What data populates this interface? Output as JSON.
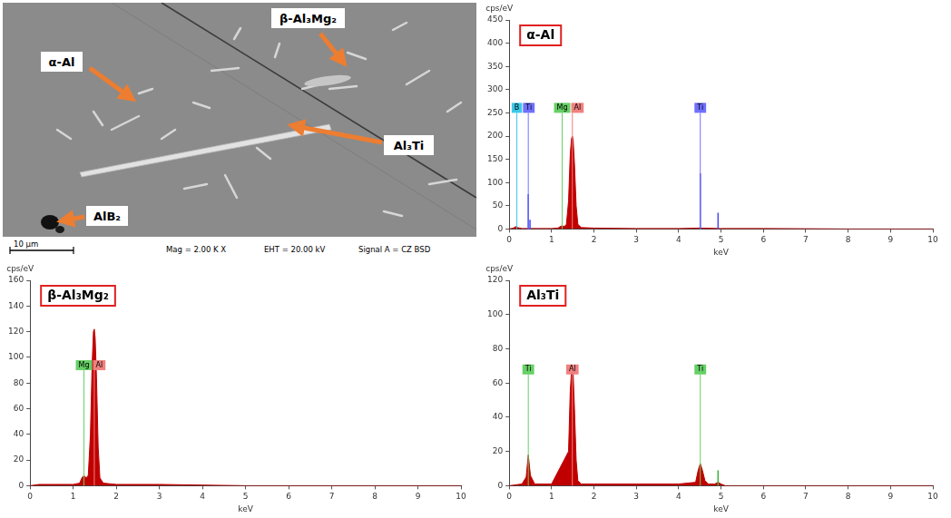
{
  "micrograph": {
    "labels": [
      "α-Al",
      "β-Al₃Mg₂",
      "Al₃Ti",
      "AlB₂"
    ],
    "scale_bar": "10 µm",
    "info": [
      "Mag =  2.00 K X",
      "EHT = 20.00 kV",
      "Signal A = CZ BSD"
    ]
  },
  "chart_data": [
    {
      "type": "line",
      "title": "α-Al",
      "xlabel": "keV",
      "ylabel": "cps/eV",
      "x": [
        0,
        0.1,
        0.15,
        0.2,
        0.25,
        0.3,
        0.5,
        1.0,
        1.15,
        1.2,
        1.25,
        1.3,
        1.35,
        1.4,
        1.44,
        1.47,
        1.49,
        1.51,
        1.54,
        1.58,
        1.62,
        1.7,
        2.0,
        3.0,
        4.0,
        4.5,
        5.0,
        6.0,
        8.0,
        10.0
      ],
      "values": [
        0,
        2,
        5,
        3,
        2,
        1,
        1,
        1,
        2,
        5,
        7,
        5,
        10,
        60,
        160,
        195,
        200,
        190,
        140,
        50,
        10,
        3,
        2,
        1,
        1,
        2,
        1,
        1,
        0,
        0
      ],
      "color": "#c00000",
      "xlim": [
        0,
        10
      ],
      "xticks": [
        0,
        1,
        2,
        3,
        4,
        5,
        6,
        7,
        8,
        9,
        10
      ],
      "ylim": [
        0,
        450
      ],
      "yticks": [
        0,
        50,
        100,
        150,
        200,
        250,
        300,
        350,
        400,
        450
      ],
      "grid": false,
      "element_markers": [
        {
          "label": "B",
          "x": 0.18,
          "y": 250,
          "color": "#3cc8e6"
        },
        {
          "label": "Ti",
          "x": 0.45,
          "y": 250,
          "color": "#7070ff"
        },
        {
          "label": "Mg",
          "x": 1.25,
          "y": 250,
          "color": "#66d066"
        },
        {
          "label": "Al",
          "x": 1.49,
          "y": 250,
          "color": "#f08080"
        },
        {
          "label": "Ti",
          "x": 4.51,
          "y": 250,
          "color": "#7070ff"
        }
      ],
      "marker_lines": [
        {
          "x": 0.45,
          "y": 75,
          "color": "#5050f0"
        },
        {
          "x": 0.49,
          "y": 20,
          "color": "#5050f0"
        },
        {
          "x": 4.51,
          "y": 120,
          "color": "#5050f0"
        },
        {
          "x": 4.93,
          "y": 35,
          "color": "#5050f0"
        }
      ]
    },
    {
      "type": "line",
      "title": "β-Al₃Mg₂",
      "xlabel": "keV",
      "ylabel": "cps/eV",
      "x": [
        0,
        0.2,
        0.5,
        1.0,
        1.15,
        1.2,
        1.25,
        1.3,
        1.35,
        1.4,
        1.44,
        1.47,
        1.49,
        1.51,
        1.54,
        1.58,
        1.62,
        1.7,
        2,
        3,
        5,
        10
      ],
      "values": [
        0,
        1,
        1,
        1,
        2,
        6,
        8,
        6,
        8,
        40,
        95,
        120,
        122,
        115,
        85,
        30,
        6,
        2,
        1,
        1,
        0,
        0
      ],
      "color": "#c00000",
      "xlim": [
        0,
        10
      ],
      "xticks": [
        0,
        1,
        2,
        3,
        4,
        5,
        6,
        7,
        8,
        9,
        10
      ],
      "ylim": [
        0,
        160
      ],
      "yticks": [
        0,
        20,
        40,
        60,
        80,
        100,
        120,
        140,
        160
      ],
      "grid": false,
      "element_markers": [
        {
          "label": "Mg",
          "x": 1.25,
          "y": 90,
          "color": "#66d066"
        },
        {
          "label": "Al",
          "x": 1.49,
          "y": 90,
          "color": "#f08080"
        }
      ],
      "marker_lines": []
    },
    {
      "type": "line",
      "title": "Al₃Ti",
      "xlabel": "keV",
      "ylabel": "cps/eV",
      "x": [
        0,
        0.3,
        0.4,
        0.45,
        0.5,
        0.6,
        1.0,
        1.4,
        1.44,
        1.47,
        1.49,
        1.51,
        1.54,
        1.58,
        1.62,
        1.7,
        2,
        3,
        4,
        4.4,
        4.46,
        4.51,
        4.56,
        4.62,
        4.7,
        4.85,
        4.93,
        5.0,
        5.1,
        6,
        10
      ],
      "values": [
        0,
        1,
        5,
        18,
        6,
        1,
        1,
        20,
        55,
        67,
        68,
        65,
        45,
        15,
        3,
        1,
        1,
        1,
        1,
        2,
        9,
        13,
        9,
        3,
        1,
        1,
        2,
        1,
        0,
        0,
        0
      ],
      "color": "#c00000",
      "xlim": [
        0,
        10
      ],
      "xticks": [
        0,
        1,
        2,
        3,
        4,
        5,
        6,
        7,
        8,
        9,
        10
      ],
      "ylim": [
        0,
        120
      ],
      "yticks": [
        0,
        20,
        40,
        60,
        80,
        100,
        120
      ],
      "grid": false,
      "element_markers": [
        {
          "label": "Ti",
          "x": 0.45,
          "y": 65,
          "color": "#66d066"
        },
        {
          "label": "Al",
          "x": 1.49,
          "y": 65,
          "color": "#f08080"
        },
        {
          "label": "Ti",
          "x": 4.51,
          "y": 65,
          "color": "#66d066"
        }
      ],
      "marker_lines": [
        {
          "x": 4.93,
          "y": 9,
          "color": "#40b040"
        }
      ]
    }
  ]
}
